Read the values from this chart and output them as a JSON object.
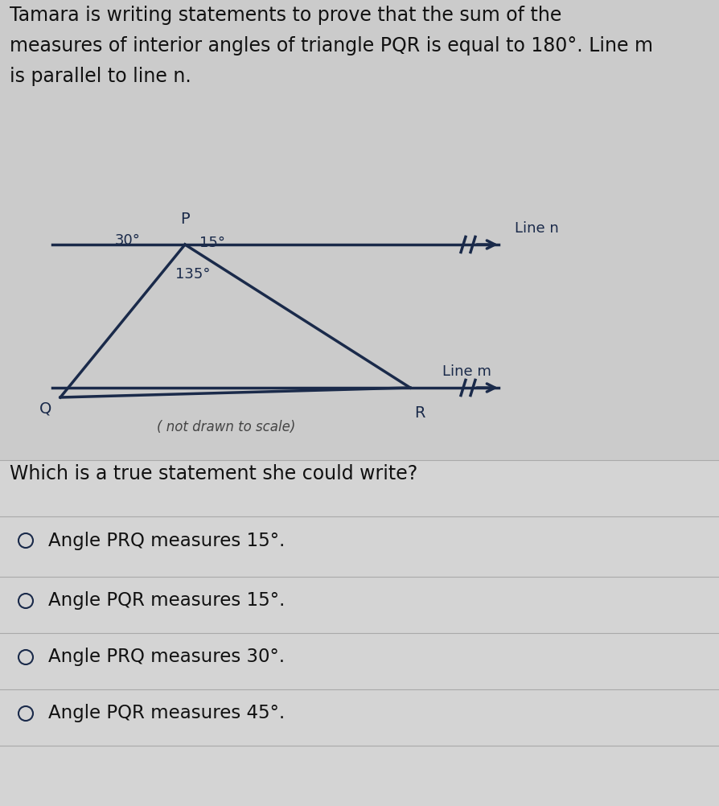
{
  "bg_color": "#cbcbcb",
  "bottom_bg": "#e0e0e0",
  "title_text_line1": "Tamara is writing statements to prove that the sum of the",
  "title_text_line2": "measures of interior angles of triangle PQR is equal to 180°. Line m",
  "title_text_line3": "is parallel to line n.",
  "title_fontsize": 17,
  "title_color": "#111111",
  "diagram_note": "( not drawn to scale)",
  "note_color": "#444444",
  "question_text": "Which is a true statement she could write?",
  "question_fontsize": 17,
  "choices": [
    "Angle PRQ measures 15°.",
    "Angle PQR measures 15°.",
    "Angle PRQ measures 30°.",
    "Angle PQR measures 45°."
  ],
  "choice_fontsize": 16.5,
  "angle_30": "30°",
  "angle_135": "135°",
  "angle_15": "15°",
  "label_P": "P",
  "label_Q": "Q",
  "label_R": "R",
  "label_line_n": "Line n",
  "label_line_m": "Line m",
  "line_color": "#1a2a4a",
  "label_color": "#1a2a4a",
  "divider_color": "#aaaaaa",
  "choice_bg": "#d8d8d8"
}
